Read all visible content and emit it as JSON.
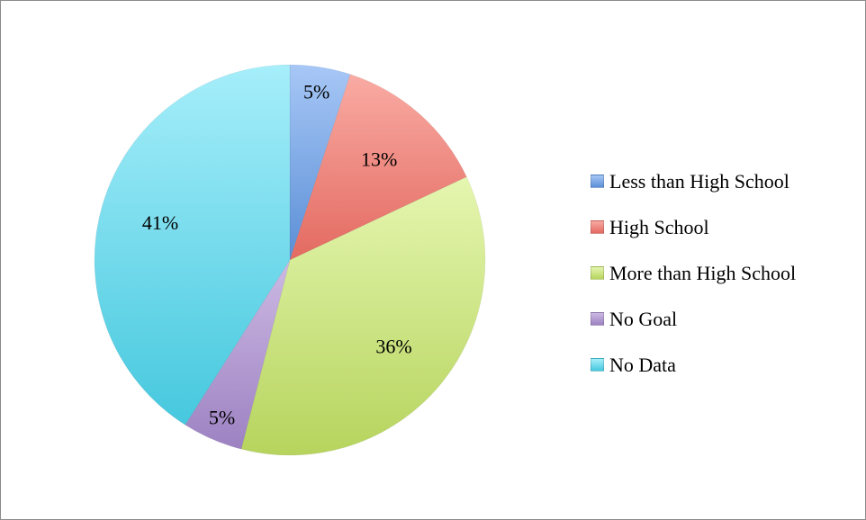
{
  "chart_data": {
    "type": "pie",
    "title": "",
    "legend_position": "right",
    "slices": [
      {
        "label": "Less than High School",
        "value": 5,
        "display": "5%",
        "color": "#5b8fd6",
        "color_light": "#a7c7f6"
      },
      {
        "label": "High School",
        "value": 13,
        "display": "13%",
        "color": "#e36a61",
        "color_light": "#f9aba3"
      },
      {
        "label": "More than High School",
        "value": 36,
        "display": "36%",
        "color": "#b6d45d",
        "color_light": "#e5f6b0"
      },
      {
        "label": "No Goal",
        "value": 5,
        "display": "5%",
        "color": "#9d82c2",
        "color_light": "#ccb9e3"
      },
      {
        "label": "No Data",
        "value": 41,
        "display": "41%",
        "color": "#46c8de",
        "color_light": "#a6eefa"
      }
    ]
  }
}
